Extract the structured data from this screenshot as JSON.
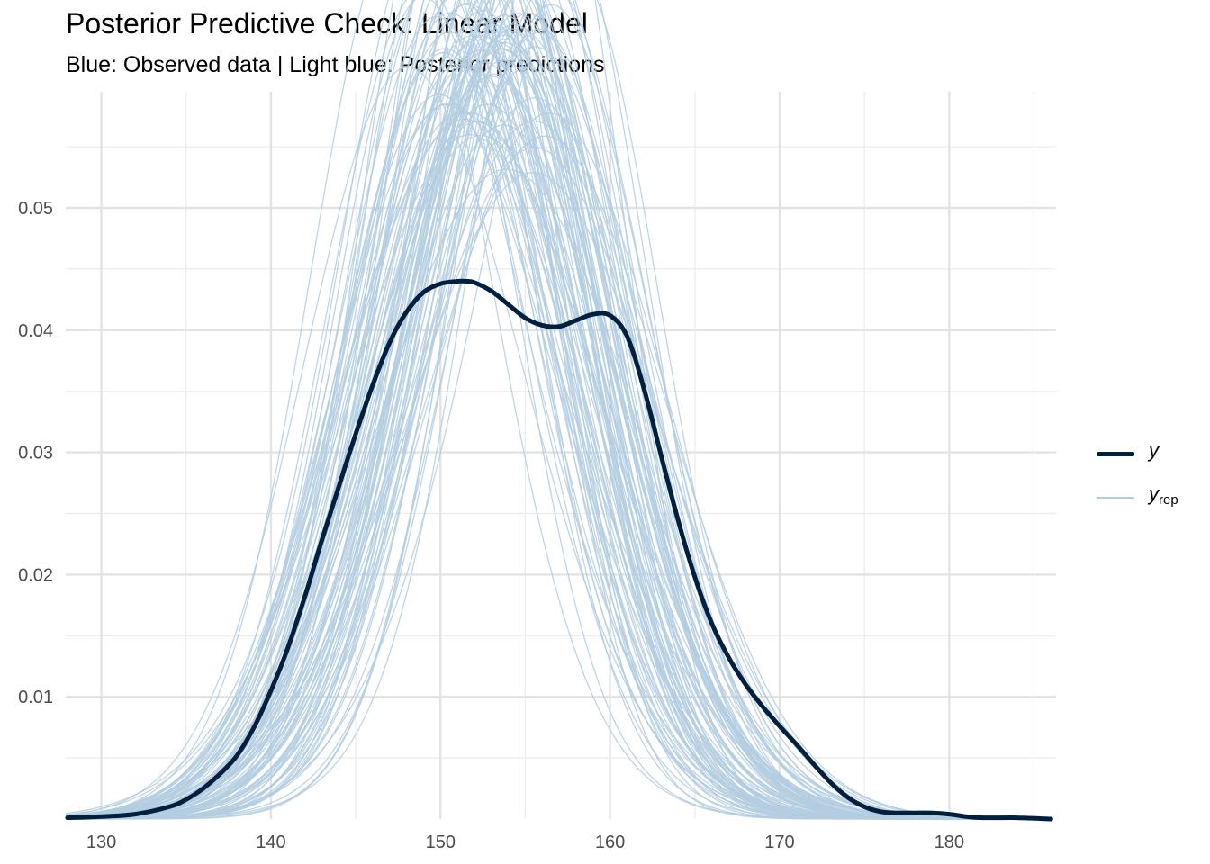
{
  "title": "Posterior Predictive Check: Linear Model",
  "subtitle": "Blue: Observed data | Light blue: Posterior predictions",
  "chart_data": {
    "type": "line",
    "xlim": [
      127.9,
      186.3
    ],
    "ylim": [
      0,
      0.0595
    ],
    "x_ticks": [
      130,
      140,
      150,
      160,
      170,
      180
    ],
    "x_tick_labels": [
      "130",
      "140",
      "150",
      "160",
      "170",
      "180"
    ],
    "y_ticks": [
      0.01,
      0.02,
      0.03,
      0.04,
      0.05
    ],
    "y_tick_labels": [
      "0.01",
      "0.02",
      "0.03",
      "0.04",
      "0.05"
    ],
    "grid": true,
    "legend_position": "right",
    "colors": {
      "observed": "#011f3f",
      "replicated": "#b3cde0"
    },
    "observed": {
      "name": "y",
      "x": [
        128,
        130,
        132,
        134,
        135,
        136,
        137,
        138,
        139,
        140,
        141,
        142,
        143,
        144,
        145,
        146,
        147,
        148,
        149,
        150,
        151,
        151.5,
        152,
        153,
        154,
        155,
        156,
        157,
        158,
        159,
        160,
        161,
        162,
        163,
        164,
        165,
        166,
        167,
        168,
        169,
        170,
        171,
        172,
        173,
        174,
        175,
        176,
        177,
        178,
        179,
        180,
        181,
        182,
        184,
        186
      ],
      "y": [
        0.0001,
        0.0002,
        0.0004,
        0.001,
        0.0016,
        0.0025,
        0.0037,
        0.0052,
        0.0075,
        0.0105,
        0.014,
        0.0182,
        0.0228,
        0.0272,
        0.0315,
        0.0355,
        0.039,
        0.0415,
        0.0431,
        0.0438,
        0.044,
        0.044,
        0.0439,
        0.0432,
        0.0421,
        0.041,
        0.0404,
        0.0403,
        0.0408,
        0.0413,
        0.0412,
        0.0395,
        0.0352,
        0.0298,
        0.0245,
        0.0198,
        0.016,
        0.0132,
        0.011,
        0.0092,
        0.0076,
        0.0061,
        0.0045,
        0.003,
        0.0018,
        0.001,
        0.0006,
        0.0005,
        0.0005,
        0.0005,
        0.0004,
        0.0002,
        0.0001,
        0.0001,
        0
      ]
    },
    "replicated": {
      "name": "y_rep",
      "n_draws": 100,
      "summary": {
        "peak_x_range": [
          151,
          158
        ],
        "peak_y_range": [
          0.0388,
          0.0593
        ]
      }
    }
  },
  "legend": {
    "observed_label": "y",
    "replicated_label": "y",
    "replicated_sub": "rep"
  }
}
